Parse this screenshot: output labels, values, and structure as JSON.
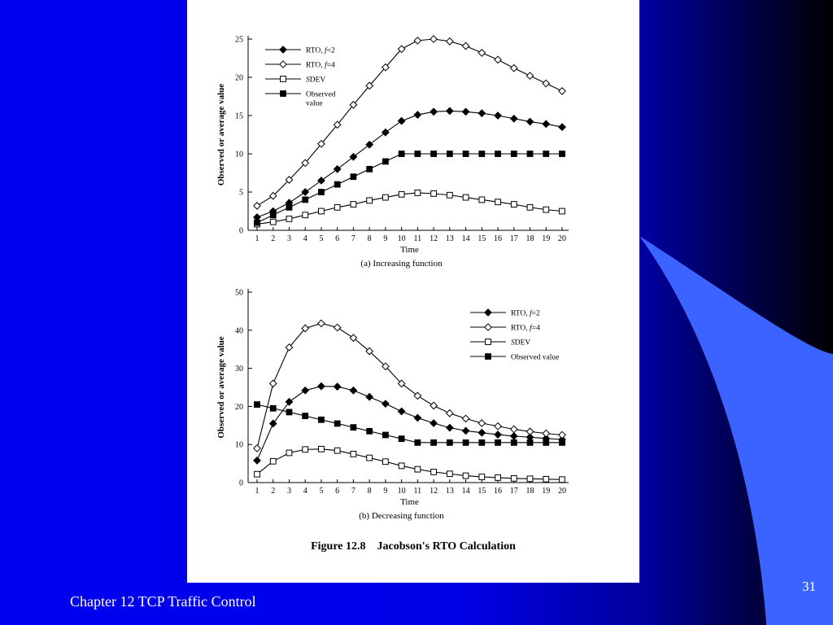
{
  "slide": {
    "footer": "Chapter 12 TCP Traffic Control",
    "page_number": "31",
    "figure_caption": "Figure 12.8    Jacobson's RTO Calculation",
    "colors": {
      "background": "#0000f0",
      "swoosh": "#3b63ff",
      "panel": "#ffffff"
    }
  },
  "chart_data": [
    {
      "type": "line",
      "caption": "(a) Increasing function",
      "xlabel": "Time",
      "ylabel": "Observed or average value",
      "ylim": [
        0,
        25
      ],
      "yticks": [
        0,
        5,
        10,
        15,
        20,
        25
      ],
      "x": [
        1,
        2,
        3,
        4,
        5,
        6,
        7,
        8,
        9,
        10,
        11,
        12,
        13,
        14,
        15,
        16,
        17,
        18,
        19,
        20
      ],
      "legend_position": "top-left",
      "series": [
        {
          "name": "RTO, f=2",
          "name_main": "RTO, ",
          "name_var": "f",
          "name_rest": "=2",
          "marker": "diamond-filled",
          "values": [
            1.7,
            2.5,
            3.6,
            5.0,
            6.5,
            8.0,
            9.6,
            11.2,
            12.8,
            14.3,
            15.1,
            15.5,
            15.6,
            15.5,
            15.3,
            15.0,
            14.6,
            14.2,
            13.9,
            13.5
          ]
        },
        {
          "name": "RTO, f=4",
          "name_main": "RTO, ",
          "name_var": "f",
          "name_rest": "=4",
          "marker": "diamond-open",
          "values": [
            3.2,
            4.5,
            6.6,
            8.8,
            11.3,
            13.8,
            16.4,
            18.9,
            21.3,
            23.7,
            24.8,
            25.0,
            24.7,
            24.1,
            23.2,
            22.3,
            21.2,
            20.2,
            19.2,
            18.2
          ]
        },
        {
          "name": "SDEV",
          "name_main": "",
          "name_var": "S",
          "name_rest": "DEV",
          "marker": "square-open",
          "values": [
            0.8,
            1.1,
            1.5,
            2.0,
            2.5,
            3.0,
            3.4,
            3.9,
            4.3,
            4.7,
            4.9,
            4.8,
            4.6,
            4.3,
            4.0,
            3.7,
            3.4,
            3.0,
            2.7,
            2.5
          ]
        },
        {
          "name": "Observed value",
          "name_main": "Observed value",
          "name_var": "",
          "name_rest": "",
          "marker": "square-filled",
          "values": [
            1.0,
            2.0,
            3.0,
            4.0,
            5.0,
            6.0,
            7.0,
            8.0,
            9.0,
            10,
            10,
            10,
            10,
            10,
            10,
            10,
            10,
            10,
            10,
            10
          ]
        }
      ]
    },
    {
      "type": "line",
      "caption": "(b) Decreasing function",
      "xlabel": "Time",
      "ylabel": "Observed or average value",
      "ylim": [
        0,
        50
      ],
      "yticks": [
        0,
        10,
        20,
        30,
        40,
        50
      ],
      "x": [
        1,
        2,
        3,
        4,
        5,
        6,
        7,
        8,
        9,
        10,
        11,
        12,
        13,
        14,
        15,
        16,
        17,
        18,
        19,
        20
      ],
      "legend_position": "top-right",
      "series": [
        {
          "name": "RTO, f=2",
          "name_main": "RTO, ",
          "name_var": "f",
          "name_rest": "=2",
          "marker": "diamond-filled",
          "values": [
            5.8,
            15.5,
            21.2,
            24.2,
            25.3,
            25.2,
            24.2,
            22.5,
            20.7,
            18.7,
            17.0,
            15.6,
            14.4,
            13.6,
            13.1,
            12.6,
            12.2,
            11.9,
            11.6,
            11.3
          ]
        },
        {
          "name": "RTO, f=4",
          "name_main": "RTO, ",
          "name_var": "f",
          "name_rest": "=4",
          "marker": "diamond-open",
          "values": [
            9.0,
            26.0,
            35.5,
            40.5,
            41.8,
            40.7,
            38.0,
            34.5,
            30.5,
            26.0,
            22.8,
            20.2,
            18.2,
            16.8,
            15.6,
            14.8,
            14.0,
            13.4,
            12.9,
            12.5
          ]
        },
        {
          "name": "SDEV",
          "name_main": "",
          "name_var": "S",
          "name_rest": "DEV",
          "marker": "square-open",
          "values": [
            2.2,
            5.6,
            7.8,
            8.7,
            8.8,
            8.4,
            7.5,
            6.5,
            5.5,
            4.4,
            3.5,
            2.8,
            2.3,
            1.8,
            1.5,
            1.3,
            1.1,
            1.0,
            0.9,
            0.8
          ]
        },
        {
          "name": "Observed value",
          "name_main": "Observed value",
          "name_var": "",
          "name_rest": "",
          "marker": "square-filled",
          "values": [
            20.5,
            19.5,
            18.5,
            17.5,
            16.5,
            15.5,
            14.5,
            13.5,
            12.5,
            11.5,
            10.5,
            10.5,
            10.5,
            10.5,
            10.5,
            10.5,
            10.5,
            10.5,
            10.5,
            10.5
          ]
        }
      ]
    }
  ]
}
